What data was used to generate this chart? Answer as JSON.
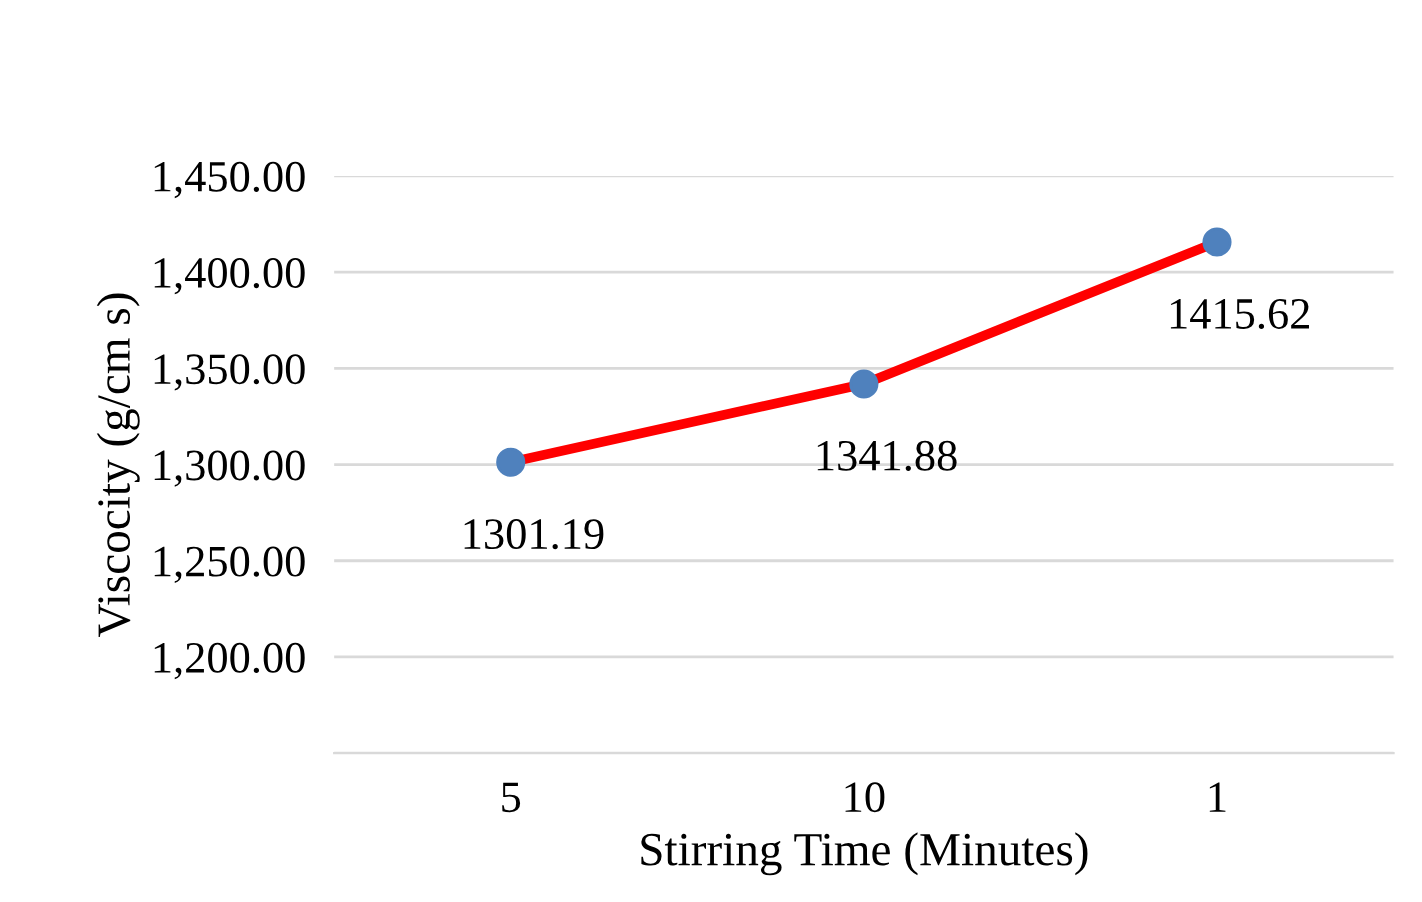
{
  "chart_data": {
    "type": "line",
    "xlabel": "Stirring Time (Minutes)",
    "ylabel": "Viscocity (g/cm s)",
    "categories": [
      "5",
      "10",
      "1"
    ],
    "series": [
      {
        "color": "#ff0000",
        "colors": [
          "#4f81bd",
          "#4f81bd",
          "#4f81bd"
        ],
        "values": [
          1301.19,
          1341.88,
          1415.62
        ]
      }
    ],
    "ylim": [
      1150,
      1450
    ],
    "yticks": [
      {
        "value": 1150,
        "label": null
      },
      {
        "value": 1200,
        "label": "1,200.00"
      },
      {
        "value": 1250,
        "label": "1,250.00"
      },
      {
        "value": 1300,
        "label": "1,300.00"
      },
      {
        "value": 1350,
        "label": "1,350.00"
      },
      {
        "value": 1400,
        "label": "1,400.00"
      },
      {
        "value": 1450,
        "label": "1,450.00"
      }
    ],
    "grid": "y",
    "marker": "circle",
    "line_style": "solid",
    "data_labels": true
  }
}
